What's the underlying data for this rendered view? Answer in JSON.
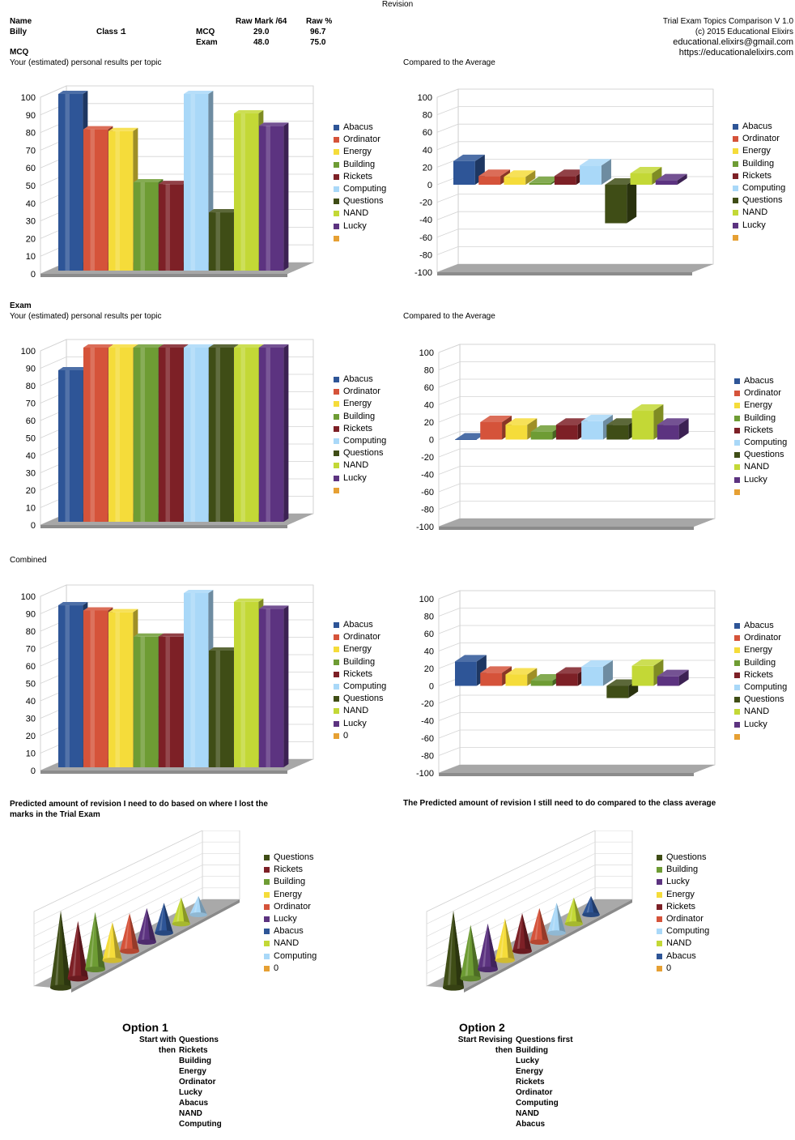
{
  "page_title": "Revision",
  "header": {
    "name_label": "Name",
    "name_value": "Billy",
    "class_label": "Class :",
    "class_value": "1",
    "col_rawmark": "Raw Mark /64",
    "col_rawpct": "Raw %",
    "mcq_label": "MCQ",
    "mcq_mark": "29.0",
    "mcq_pct": "96.7",
    "exam_label": "Exam",
    "exam_mark": "48.0",
    "exam_pct": "75.0",
    "app_title": "Trial Exam Topics Comparison V 1.0",
    "copyright": "(c) 2015 Educational Elixirs",
    "email": "educational.elixirs@gmail.com",
    "website": "https://educationalelixirs.com"
  },
  "sections": {
    "mcq_title": "MCQ",
    "mcq_sub": "Your (estimated) personal results per topic",
    "mcq_cmp": "Compared to the Average",
    "exam_title": "Exam",
    "exam_sub": "Your (estimated) personal results per topic",
    "exam_cmp": "Compared to the Average",
    "combined_title": "Combined",
    "pred1_title_l1": "Predicted amount of revision I need to do based on where I lost the",
    "pred1_title_l2": "marks in the Trial Exam",
    "pred2_title": "The Predicted amount of revision I still need to do compared to the class average"
  },
  "colors": {
    "Abacus": "#2e5597",
    "Ordinator": "#d5533a",
    "Energy": "#f5dc3a",
    "Building": "#6e9c34",
    "Rickets": "#7d2026",
    "Computing": "#a9d8f8",
    "Questions": "#3f4d16",
    "NAND": "#c3d836",
    "Lucky": "#5c3380",
    "Extra": "#e6a033"
  },
  "chart_data": [
    {
      "id": "mcq_personal",
      "type": "bar",
      "title": "",
      "categories": [
        "Abacus",
        "Ordinator",
        "Energy",
        "Building",
        "Rickets",
        "Computing",
        "Questions",
        "NAND",
        "Lucky"
      ],
      "values": [
        100,
        80,
        79,
        50,
        49,
        100,
        33,
        89,
        82
      ],
      "ylim": [
        0,
        100
      ],
      "ticks": [
        100,
        90,
        80,
        70,
        60,
        50,
        40,
        30,
        20,
        10,
        0
      ],
      "legend": [
        "Abacus",
        "Ordinator",
        "Energy",
        "Building",
        "Rickets",
        "Computing",
        "Questions",
        "NAND",
        "Lucky",
        ""
      ]
    },
    {
      "id": "mcq_compare",
      "type": "bar",
      "title": "",
      "categories": [
        "Abacus",
        "Ordinator",
        "Energy",
        "Building",
        "Rickets",
        "Computing",
        "Questions",
        "NAND",
        "Lucky"
      ],
      "values": [
        27,
        10,
        9,
        2,
        10,
        22,
        -44,
        13,
        5
      ],
      "ylim": [
        -100,
        100
      ],
      "ticks": [
        100,
        80,
        60,
        40,
        20,
        0,
        -20,
        -40,
        -60,
        -80,
        -100
      ],
      "legend": [
        "Abacus",
        "Ordinator",
        "Energy",
        "Building",
        "Rickets",
        "Computing",
        "Questions",
        "NAND",
        "Lucky",
        ""
      ]
    },
    {
      "id": "exam_personal",
      "type": "bar",
      "title": "",
      "categories": [
        "Abacus",
        "Ordinator",
        "Energy",
        "Building",
        "Rickets",
        "Computing",
        "Questions",
        "NAND",
        "Lucky"
      ],
      "values": [
        87,
        100,
        100,
        100,
        100,
        100,
        100,
        100,
        100
      ],
      "ylim": [
        0,
        100
      ],
      "ticks": [
        100,
        90,
        80,
        70,
        60,
        50,
        40,
        30,
        20,
        10,
        0
      ],
      "legend": [
        "Abacus",
        "Ordinator",
        "Energy",
        "Building",
        "Rickets",
        "Computing",
        "Questions",
        "NAND",
        "Lucky",
        ""
      ]
    },
    {
      "id": "exam_compare",
      "type": "bar",
      "title": "",
      "categories": [
        "Abacus",
        "Ordinator",
        "Energy",
        "Building",
        "Rickets",
        "Computing",
        "Questions",
        "NAND",
        "Lucky"
      ],
      "values": [
        0,
        20,
        17,
        9,
        17,
        21,
        17,
        33,
        17
      ],
      "ylim": [
        -100,
        100
      ],
      "ticks": [
        100,
        80,
        60,
        40,
        20,
        0,
        -20,
        -40,
        -60,
        -80,
        -100
      ],
      "legend": [
        "Abacus",
        "Ordinator",
        "Energy",
        "Building",
        "Rickets",
        "Computing",
        "Questions",
        "NAND",
        "Lucky",
        ""
      ]
    },
    {
      "id": "combined_personal",
      "type": "bar",
      "title": "",
      "categories": [
        "Abacus",
        "Ordinator",
        "Energy",
        "Building",
        "Rickets",
        "Computing",
        "Questions",
        "NAND",
        "Lucky"
      ],
      "values": [
        93,
        90,
        89,
        75,
        75,
        100,
        67,
        95,
        91
      ],
      "ylim": [
        0,
        100
      ],
      "ticks": [
        100,
        90,
        80,
        70,
        60,
        50,
        40,
        30,
        20,
        10,
        0
      ],
      "legend": [
        "Abacus",
        "Ordinator",
        "Energy",
        "Building",
        "Rickets",
        "Computing",
        "Questions",
        "NAND",
        "Lucky",
        "0"
      ]
    },
    {
      "id": "combined_compare",
      "type": "bar",
      "title": "",
      "categories": [
        "Abacus",
        "Ordinator",
        "Energy",
        "Building",
        "Rickets",
        "Computing",
        "Questions",
        "NAND",
        "Lucky"
      ],
      "values": [
        28,
        15,
        13,
        6,
        14,
        22,
        -14,
        23,
        11
      ],
      "ylim": [
        -100,
        100
      ],
      "ticks": [
        100,
        80,
        60,
        40,
        20,
        0,
        -20,
        -40,
        -60,
        -80,
        -100
      ],
      "legend": [
        "Abacus",
        "Ordinator",
        "Energy",
        "Building",
        "Rickets",
        "Computing",
        "Questions",
        "NAND",
        "Lucky",
        ""
      ]
    },
    {
      "id": "predicted_revision",
      "type": "bar",
      "shape": "cone",
      "title": "",
      "categories": [
        "Questions",
        "Rickets",
        "Building",
        "Energy",
        "Ordinator",
        "Lucky",
        "Abacus",
        "NAND",
        "Computing"
      ],
      "values": [
        100,
        75,
        75,
        50,
        50,
        45,
        40,
        35,
        25
      ],
      "legend": [
        "Questions",
        "Rickets",
        "Building",
        "Energy",
        "Ordinator",
        "Lucky",
        "Abacus",
        "NAND",
        "Computing",
        "0"
      ]
    },
    {
      "id": "predicted_revision_vs_average",
      "type": "bar",
      "shape": "cone",
      "title": "",
      "categories": [
        "Questions",
        "Building",
        "Lucky",
        "Energy",
        "Rickets",
        "Ordinator",
        "Computing",
        "NAND",
        "Abacus"
      ],
      "values": [
        100,
        70,
        60,
        55,
        50,
        45,
        40,
        35,
        25
      ],
      "legend": [
        "Questions",
        "Building",
        "Lucky",
        "Energy",
        "Rickets",
        "Ordinator",
        "Computing",
        "NAND",
        "Abacus",
        "0"
      ]
    }
  ],
  "options": {
    "opt1_title": "Option 1",
    "opt1_start_label": "Start with",
    "opt1_then_label": "then",
    "opt1_items": [
      "Questions",
      "Rickets",
      "Building",
      "Energy",
      "Ordinator",
      "Lucky",
      "Abacus",
      "NAND",
      "Computing"
    ],
    "opt2_title": "Option 2",
    "opt2_start_label": "Start Revising",
    "opt2_then_label": "then",
    "opt2_first": "Questions first",
    "opt2_items": [
      "Building",
      "Lucky",
      "Energy",
      "Rickets",
      "Ordinator",
      "Computing",
      "NAND",
      "Abacus"
    ]
  }
}
